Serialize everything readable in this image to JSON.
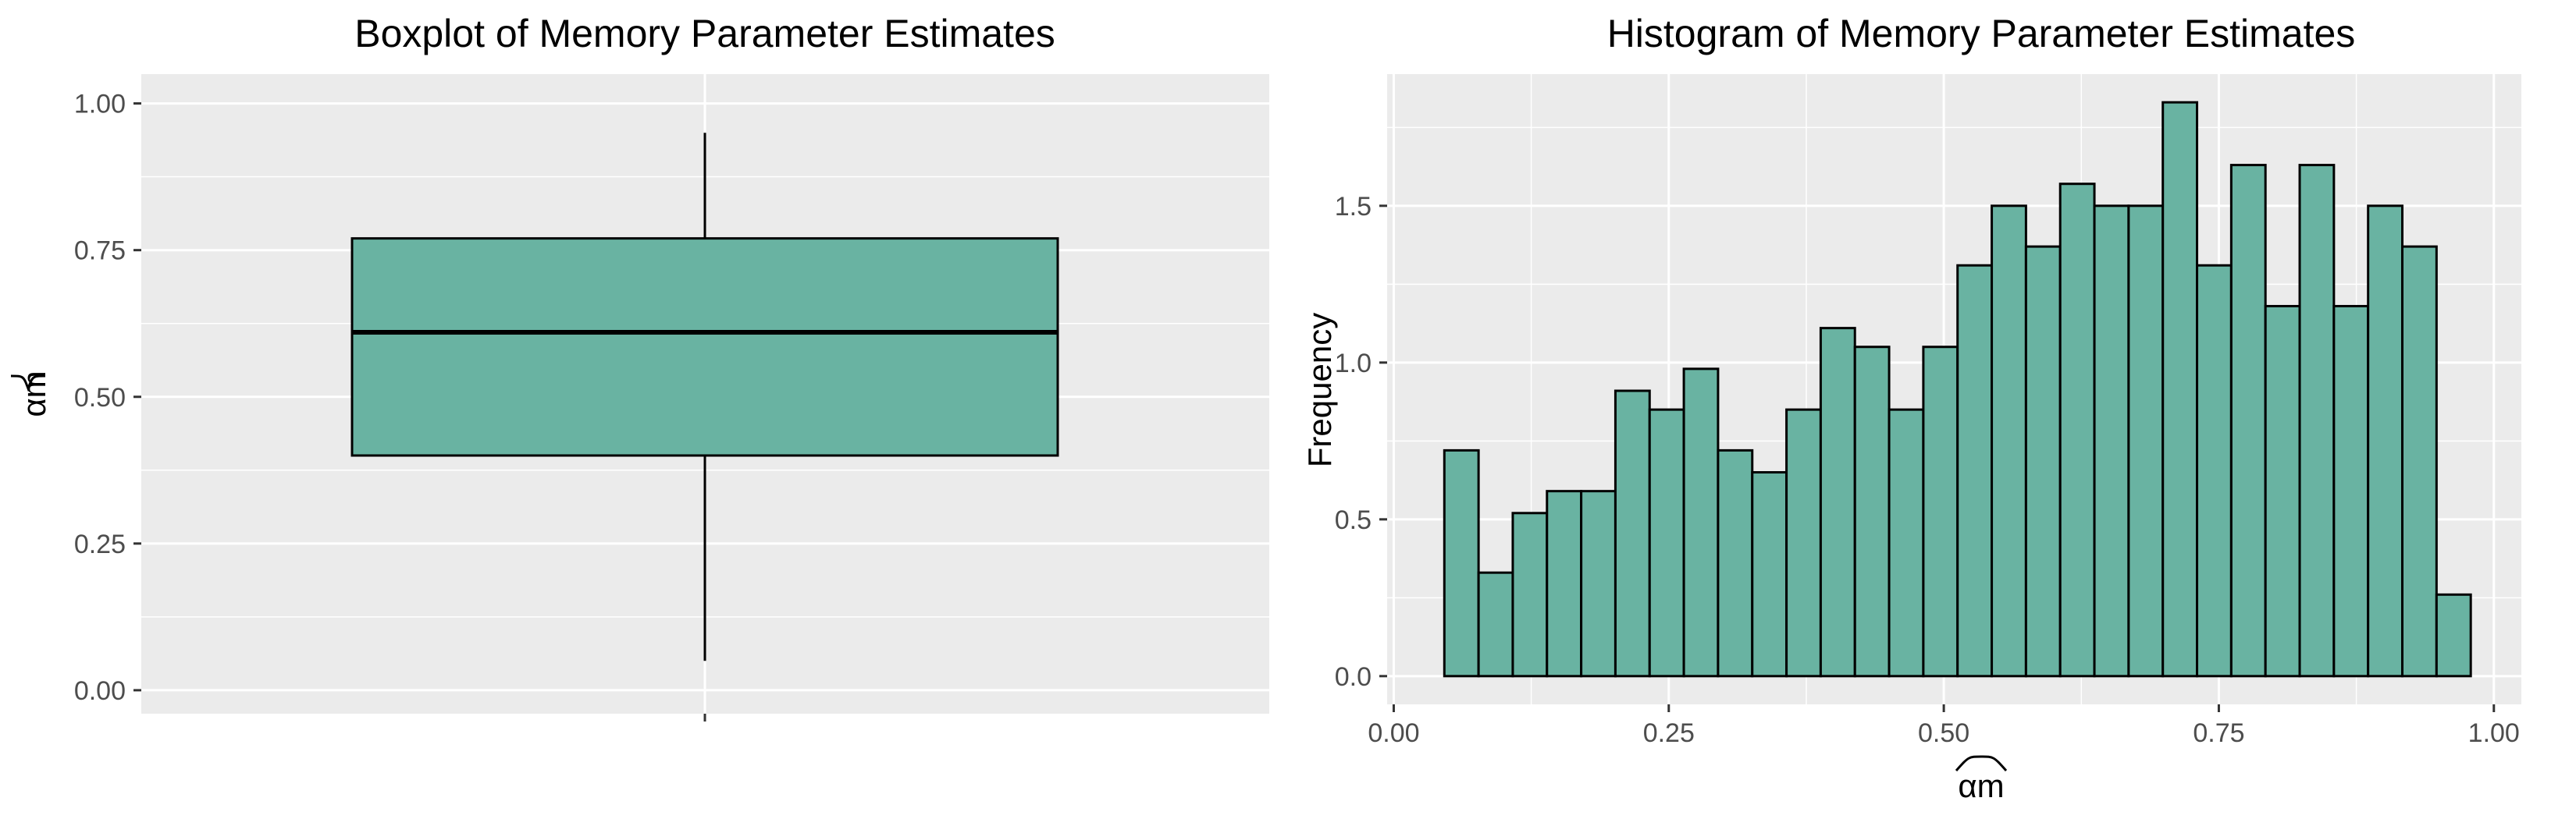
{
  "colors": {
    "panel_bg": "#ebebeb",
    "grid": "#ffffff",
    "fill": "#69b3a2",
    "outline": "#000000",
    "tick_text": "#4d4d4d"
  },
  "chart_data": [
    {
      "type": "boxplot",
      "title": "Boxplot of Memory Parameter Estimates",
      "ylabel": "αm",
      "xlabel": "",
      "ylim": [
        -0.04,
        1.05
      ],
      "yticks": [
        0.0,
        0.25,
        0.5,
        0.75,
        1.0
      ],
      "ytick_labels": [
        "0.00",
        "0.25",
        "0.50",
        "0.75",
        "1.00"
      ],
      "box": {
        "lower_whisker": 0.05,
        "q1": 0.4,
        "median": 0.61,
        "q3": 0.77,
        "upper_whisker": 0.95
      },
      "grid": true
    },
    {
      "type": "bar",
      "title": "Histogram of Memory Parameter Estimates",
      "xlabel": "αm",
      "ylabel": "Frequency",
      "xlim": [
        -0.006,
        1.025
      ],
      "ylim": [
        -0.09,
        1.92
      ],
      "xticks": [
        0.0,
        0.25,
        0.5,
        0.75,
        1.0
      ],
      "xtick_labels": [
        "0.00",
        "0.25",
        "0.50",
        "0.75",
        "1.00"
      ],
      "yticks": [
        0.0,
        0.5,
        1.0,
        1.5
      ],
      "ytick_labels": [
        "0.0",
        "0.5",
        "1.0",
        "1.5"
      ],
      "bin_start": 0.046,
      "bin_width": 0.0311,
      "values": [
        0.72,
        0.33,
        0.52,
        0.59,
        0.59,
        0.91,
        0.85,
        0.98,
        0.72,
        0.65,
        0.85,
        1.11,
        1.05,
        0.85,
        1.05,
        1.31,
        1.5,
        1.37,
        1.57,
        1.5,
        1.5,
        1.83,
        1.31,
        1.63,
        1.18,
        1.63,
        1.18,
        1.5,
        1.37,
        0.26
      ],
      "grid": true
    }
  ]
}
